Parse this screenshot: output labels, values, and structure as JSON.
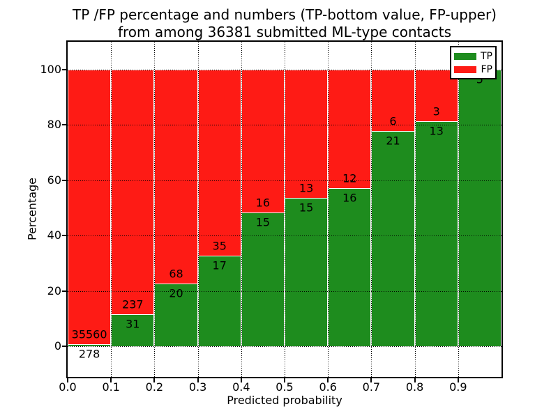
{
  "chart_data": {
    "type": "bar",
    "stacked": true,
    "normalized_to_percent": true,
    "title_line1": "TP /FP percentage and numbers (TP-bottom value, FP-upper)",
    "title_line2": "from among 36381 submitted ML-type contacts",
    "xlabel": "Predicted probability",
    "ylabel": "Percentage",
    "xlim": [
      0.0,
      1.0
    ],
    "ylim": [
      -11,
      110
    ],
    "xtick_labels": [
      "0.0",
      "0.1",
      "0.2",
      "0.3",
      "0.4",
      "0.5",
      "0.6",
      "0.7",
      "0.8",
      "0.9"
    ],
    "xtick_values": [
      0.0,
      0.1,
      0.2,
      0.3,
      0.4,
      0.5,
      0.6,
      0.7,
      0.8,
      0.9
    ],
    "ytick_labels": [
      "0",
      "20",
      "40",
      "60",
      "80",
      "100"
    ],
    "ytick_values": [
      0,
      20,
      40,
      60,
      80,
      100
    ],
    "grid": {
      "style": "dotted",
      "color": "#000000",
      "on": true
    },
    "legend": {
      "position": "upper-right",
      "entries": [
        {
          "label": "TP",
          "color": "#1e8c1e"
        },
        {
          "label": "FP",
          "color": "#fe1b15"
        }
      ]
    },
    "bins": [
      {
        "x0": 0.0,
        "x1": 0.1,
        "tp_count": 278,
        "fp_count": 35560,
        "tp_pct": 0.78
      },
      {
        "x0": 0.1,
        "x1": 0.2,
        "tp_count": 31,
        "fp_count": 237,
        "tp_pct": 11.57
      },
      {
        "x0": 0.2,
        "x1": 0.3,
        "tp_count": 20,
        "fp_count": 68,
        "tp_pct": 22.73
      },
      {
        "x0": 0.3,
        "x1": 0.4,
        "tp_count": 17,
        "fp_count": 35,
        "tp_pct": 32.69
      },
      {
        "x0": 0.4,
        "x1": 0.5,
        "tp_count": 15,
        "fp_count": 16,
        "tp_pct": 48.39
      },
      {
        "x0": 0.5,
        "x1": 0.6,
        "tp_count": 15,
        "fp_count": 13,
        "tp_pct": 53.57
      },
      {
        "x0": 0.6,
        "x1": 0.7,
        "tp_count": 16,
        "fp_count": 12,
        "tp_pct": 57.14
      },
      {
        "x0": 0.7,
        "x1": 0.8,
        "tp_count": 21,
        "fp_count": 6,
        "tp_pct": 77.78
      },
      {
        "x0": 0.8,
        "x1": 0.9,
        "tp_count": 13,
        "fp_count": 3,
        "tp_pct": 81.25
      },
      {
        "x0": 0.9,
        "x1": 1.0,
        "tp_count": 5,
        "fp_count": null,
        "tp_pct": 100
      }
    ]
  },
  "colors": {
    "tp_green": "#1e8c1e",
    "fp_red": "#fe1b15",
    "text": "#000000",
    "background": "#ffffff"
  }
}
